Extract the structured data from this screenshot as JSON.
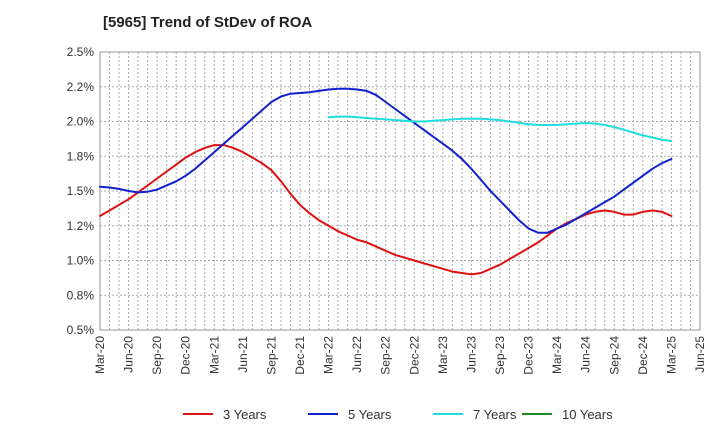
{
  "chart_data": {
    "type": "line",
    "title": "[5965]  Trend of StDev of ROA",
    "xlabel": "",
    "ylabel": "",
    "x_ticks": [
      "Mar-20",
      "Jun-20",
      "Sep-20",
      "Dec-20",
      "Mar-21",
      "Jun-21",
      "Sep-21",
      "Dec-21",
      "Mar-22",
      "Jun-22",
      "Sep-22",
      "Dec-22",
      "Mar-23",
      "Jun-23",
      "Sep-23",
      "Dec-23",
      "Mar-24",
      "Jun-24",
      "Sep-24",
      "Dec-24",
      "Mar-25",
      "Jun-25"
    ],
    "y_ticks": [
      "0.5%",
      "0.8%",
      "1.0%",
      "1.2%",
      "1.5%",
      "1.8%",
      "2.0%",
      "2.2%",
      "2.5%"
    ],
    "ylim": [
      0.5,
      2.5
    ],
    "grid": true,
    "legend_position": "bottom",
    "series": [
      {
        "name": "3 Years",
        "color": "#dd1111",
        "points": [
          [
            "Mar-20",
            1.32
          ],
          [
            "Apr-20",
            1.36
          ],
          [
            "May-20",
            1.4
          ],
          [
            "Jun-20",
            1.44
          ],
          [
            "Jul-20",
            1.49
          ],
          [
            "Aug-20",
            1.54
          ],
          [
            "Sep-20",
            1.59
          ],
          [
            "Oct-20",
            1.64
          ],
          [
            "Nov-20",
            1.69
          ],
          [
            "Dec-20",
            1.74
          ],
          [
            "Jan-21",
            1.78
          ],
          [
            "Feb-21",
            1.81
          ],
          [
            "Mar-21",
            1.83
          ],
          [
            "Apr-21",
            1.83
          ],
          [
            "May-21",
            1.81
          ],
          [
            "Jun-21",
            1.78
          ],
          [
            "Jul-21",
            1.74
          ],
          [
            "Aug-21",
            1.7
          ],
          [
            "Sep-21",
            1.65
          ],
          [
            "Oct-21",
            1.57
          ],
          [
            "Nov-21",
            1.48
          ],
          [
            "Dec-21",
            1.4
          ],
          [
            "Jan-22",
            1.34
          ],
          [
            "Feb-22",
            1.29
          ],
          [
            "Mar-22",
            1.25
          ],
          [
            "Apr-22",
            1.21
          ],
          [
            "May-22",
            1.18
          ],
          [
            "Jun-22",
            1.15
          ],
          [
            "Jul-22",
            1.13
          ],
          [
            "Aug-22",
            1.1
          ],
          [
            "Sep-22",
            1.07
          ],
          [
            "Oct-22",
            1.04
          ],
          [
            "Nov-22",
            1.02
          ],
          [
            "Dec-22",
            1.0
          ],
          [
            "Jan-23",
            0.98
          ],
          [
            "Feb-23",
            0.96
          ],
          [
            "Mar-23",
            0.94
          ],
          [
            "Apr-23",
            0.92
          ],
          [
            "May-23",
            0.91
          ],
          [
            "Jun-23",
            0.9
          ],
          [
            "Jul-23",
            0.91
          ],
          [
            "Aug-23",
            0.94
          ],
          [
            "Sep-23",
            0.97
          ],
          [
            "Oct-23",
            1.01
          ],
          [
            "Nov-23",
            1.05
          ],
          [
            "Dec-23",
            1.09
          ],
          [
            "Jan-24",
            1.13
          ],
          [
            "Feb-24",
            1.18
          ],
          [
            "Mar-24",
            1.23
          ],
          [
            "Apr-24",
            1.27
          ],
          [
            "May-24",
            1.3
          ],
          [
            "Jun-24",
            1.33
          ],
          [
            "Jul-24",
            1.35
          ],
          [
            "Aug-24",
            1.36
          ],
          [
            "Sep-24",
            1.35
          ],
          [
            "Oct-24",
            1.33
          ],
          [
            "Nov-24",
            1.33
          ],
          [
            "Dec-24",
            1.35
          ],
          [
            "Jan-25",
            1.36
          ],
          [
            "Feb-25",
            1.35
          ],
          [
            "Mar-25",
            1.32
          ]
        ]
      },
      {
        "name": "5 Years",
        "color": "#1122cc",
        "points": [
          [
            "Mar-20",
            1.53
          ],
          [
            "Apr-20",
            1.525
          ],
          [
            "May-20",
            1.515
          ],
          [
            "Jun-20",
            1.5
          ],
          [
            "Jul-20",
            1.49
          ],
          [
            "Aug-20",
            1.495
          ],
          [
            "Sep-20",
            1.51
          ],
          [
            "Oct-20",
            1.54
          ],
          [
            "Nov-20",
            1.57
          ],
          [
            "Dec-20",
            1.61
          ],
          [
            "Jan-21",
            1.66
          ],
          [
            "Feb-21",
            1.72
          ],
          [
            "Mar-21",
            1.78
          ],
          [
            "Apr-21",
            1.84
          ],
          [
            "May-21",
            1.9
          ],
          [
            "Jun-21",
            1.96
          ],
          [
            "Jul-21",
            2.02
          ],
          [
            "Aug-21",
            2.08
          ],
          [
            "Sep-21",
            2.14
          ],
          [
            "Oct-21",
            2.18
          ],
          [
            "Nov-21",
            2.2
          ],
          [
            "Dec-21",
            2.205
          ],
          [
            "Jan-22",
            2.21
          ],
          [
            "Feb-22",
            2.22
          ],
          [
            "Mar-22",
            2.23
          ],
          [
            "Apr-22",
            2.235
          ],
          [
            "May-22",
            2.235
          ],
          [
            "Jun-22",
            2.23
          ],
          [
            "Jul-22",
            2.22
          ],
          [
            "Aug-22",
            2.19
          ],
          [
            "Sep-22",
            2.14
          ],
          [
            "Oct-22",
            2.09
          ],
          [
            "Nov-22",
            2.04
          ],
          [
            "Dec-22",
            1.99
          ],
          [
            "Jan-23",
            1.94
          ],
          [
            "Feb-23",
            1.89
          ],
          [
            "Mar-23",
            1.84
          ],
          [
            "Apr-23",
            1.79
          ],
          [
            "May-23",
            1.73
          ],
          [
            "Jun-23",
            1.66
          ],
          [
            "Jul-23",
            1.58
          ],
          [
            "Aug-23",
            1.5
          ],
          [
            "Sep-23",
            1.43
          ],
          [
            "Oct-23",
            1.36
          ],
          [
            "Nov-23",
            1.29
          ],
          [
            "Dec-23",
            1.23
          ],
          [
            "Jan-24",
            1.2
          ],
          [
            "Feb-24",
            1.2
          ],
          [
            "Mar-24",
            1.23
          ],
          [
            "Apr-24",
            1.26
          ],
          [
            "May-24",
            1.3
          ],
          [
            "Jun-24",
            1.34
          ],
          [
            "Jul-24",
            1.38
          ],
          [
            "Aug-24",
            1.42
          ],
          [
            "Sep-24",
            1.46
          ],
          [
            "Oct-24",
            1.51
          ],
          [
            "Nov-24",
            1.56
          ],
          [
            "Dec-24",
            1.61
          ],
          [
            "Jan-25",
            1.66
          ],
          [
            "Feb-25",
            1.7
          ],
          [
            "Mar-25",
            1.73
          ]
        ]
      },
      {
        "name": "7 Years",
        "color": "#22dddd",
        "points": [
          [
            "Mar-22",
            2.03
          ],
          [
            "Apr-22",
            2.035
          ],
          [
            "May-22",
            2.035
          ],
          [
            "Jun-22",
            2.03
          ],
          [
            "Jul-22",
            2.025
          ],
          [
            "Aug-22",
            2.02
          ],
          [
            "Sep-22",
            2.015
          ],
          [
            "Oct-22",
            2.01
          ],
          [
            "Nov-22",
            2.005
          ],
          [
            "Dec-22",
            2.0
          ],
          [
            "Jan-23",
            2.0
          ],
          [
            "Feb-23",
            2.005
          ],
          [
            "Mar-23",
            2.01
          ],
          [
            "Apr-23",
            2.015
          ],
          [
            "May-23",
            2.02
          ],
          [
            "Jun-23",
            2.02
          ],
          [
            "Jul-23",
            2.02
          ],
          [
            "Aug-23",
            2.015
          ],
          [
            "Sep-23",
            2.01
          ],
          [
            "Oct-23",
            2.0
          ],
          [
            "Nov-23",
            1.99
          ],
          [
            "Dec-23",
            1.98
          ],
          [
            "Jan-24",
            1.975
          ],
          [
            "Feb-24",
            1.975
          ],
          [
            "Mar-24",
            1.975
          ],
          [
            "Apr-24",
            1.98
          ],
          [
            "May-24",
            1.985
          ],
          [
            "Jun-24",
            1.99
          ],
          [
            "Jul-24",
            1.985
          ],
          [
            "Aug-24",
            1.975
          ],
          [
            "Sep-24",
            1.96
          ],
          [
            "Oct-24",
            1.94
          ],
          [
            "Nov-24",
            1.92
          ],
          [
            "Dec-24",
            1.9
          ],
          [
            "Jan-25",
            1.885
          ],
          [
            "Feb-25",
            1.87
          ],
          [
            "Mar-25",
            1.86
          ]
        ]
      },
      {
        "name": "10 Years",
        "color": "#228822",
        "points": []
      }
    ]
  }
}
